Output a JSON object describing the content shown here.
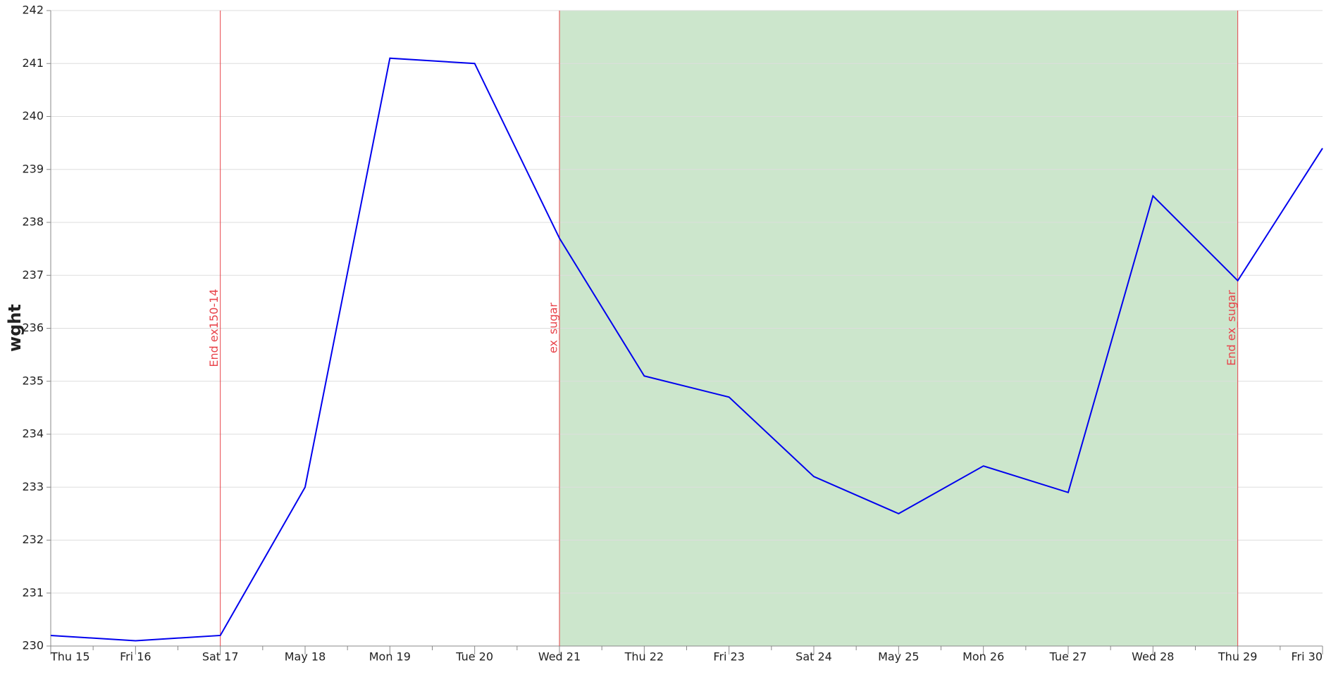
{
  "chart_data": {
    "type": "line",
    "y_label": "wght",
    "categories": [
      "Thu 15",
      "Fri 16",
      "Sat 17",
      "May 18",
      "Mon 19",
      "Tue 20",
      "Wed 21",
      "Thu 22",
      "Fri 23",
      "Sat 24",
      "May 25",
      "Mon 26",
      "Tue 27",
      "Wed 28",
      "Thu 29",
      "Fri 30"
    ],
    "values": [
      230.2,
      230.1,
      230.2,
      233.0,
      241.1,
      241.0,
      237.7,
      235.1,
      234.7,
      233.2,
      232.5,
      233.4,
      232.9,
      238.5,
      236.9,
      239.4
    ],
    "color": "#0000ee",
    "ylim": [
      230,
      242
    ],
    "yticks": [
      230,
      231,
      232,
      233,
      234,
      235,
      236,
      237,
      238,
      239,
      240,
      241,
      242
    ],
    "grid": true,
    "span": {
      "from": "Wed 21",
      "to": "Thu 29",
      "color": "#cce6cc"
    },
    "annotations": [
      {
        "x": "Sat 17",
        "label": "End ex150-14",
        "color": "#e8434a"
      },
      {
        "x": "Wed 21",
        "label": "ex_sugar",
        "color": "#e8434a"
      },
      {
        "x": "Thu 29",
        "label": "End ex_sugar",
        "color": "#e8434a"
      }
    ]
  }
}
